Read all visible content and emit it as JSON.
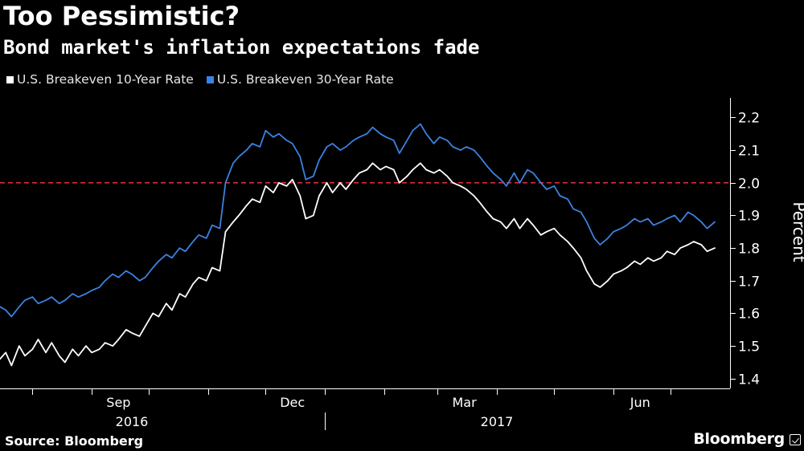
{
  "header": {
    "title": "Too Pessimistic?",
    "subtitle": "Bond market's inflation expectations fade"
  },
  "footer": {
    "source": "Source: Bloomberg",
    "brand": "Bloomberg"
  },
  "colors": {
    "background": "#000000",
    "series_10y": "#ffffff",
    "series_30y": "#3b82e0",
    "reference_line": "#e8313b",
    "axis": "#ffffff"
  },
  "chart_data": {
    "type": "line",
    "title": "Too Pessimistic?",
    "subtitle": "Bond market's inflation expectations fade",
    "ylabel": "Percent",
    "ylim": [
      1.37,
      2.26
    ],
    "yticks": [
      1.4,
      1.5,
      1.6,
      1.7,
      1.8,
      1.9,
      2.0,
      2.1,
      2.2
    ],
    "ytick_labels": [
      "1.4",
      "1.5",
      "1.6",
      "1.7",
      "1.8",
      "1.9",
      "2.0",
      "2.1",
      "2.2"
    ],
    "xlim": [
      "2016-07-15",
      "2017-08-01"
    ],
    "month_ticks": [
      "2016-08-01",
      "2016-09-01",
      "2016-10-01",
      "2016-11-01",
      "2016-12-01",
      "2017-01-01",
      "2017-02-01",
      "2017-03-01",
      "2017-04-01",
      "2017-05-01",
      "2017-06-01",
      "2017-07-01"
    ],
    "month_labels": [
      {
        "date": "2016-09-15",
        "label": "Sep"
      },
      {
        "date": "2016-12-15",
        "label": "Dec"
      },
      {
        "date": "2017-03-15",
        "label": "Mar"
      },
      {
        "date": "2017-06-15",
        "label": "Jun"
      }
    ],
    "year_labels": [
      {
        "date": "2016-09-22",
        "label": "2016"
      },
      {
        "date": "2017-04-01",
        "label": "2017"
      }
    ],
    "year_divider": "2017-01-01",
    "reference_line": {
      "y": 2.0,
      "style": "dashed"
    },
    "grid": false,
    "legend_position": "top-left",
    "series": [
      {
        "name": "U.S. Breakeven 10-Year Rate",
        "color": "#ffffff",
        "points": [
          [
            "2016-07-15",
            1.46
          ],
          [
            "2016-07-18",
            1.48
          ],
          [
            "2016-07-21",
            1.44
          ],
          [
            "2016-07-25",
            1.5
          ],
          [
            "2016-07-28",
            1.47
          ],
          [
            "2016-08-01",
            1.49
          ],
          [
            "2016-08-04",
            1.52
          ],
          [
            "2016-08-08",
            1.48
          ],
          [
            "2016-08-11",
            1.51
          ],
          [
            "2016-08-15",
            1.47
          ],
          [
            "2016-08-18",
            1.45
          ],
          [
            "2016-08-22",
            1.49
          ],
          [
            "2016-08-25",
            1.47
          ],
          [
            "2016-08-29",
            1.5
          ],
          [
            "2016-09-01",
            1.48
          ],
          [
            "2016-09-05",
            1.49
          ],
          [
            "2016-09-08",
            1.51
          ],
          [
            "2016-09-12",
            1.5
          ],
          [
            "2016-09-15",
            1.52
          ],
          [
            "2016-09-19",
            1.55
          ],
          [
            "2016-09-22",
            1.54
          ],
          [
            "2016-09-26",
            1.53
          ],
          [
            "2016-09-29",
            1.56
          ],
          [
            "2016-10-03",
            1.6
          ],
          [
            "2016-10-06",
            1.59
          ],
          [
            "2016-10-10",
            1.63
          ],
          [
            "2016-10-13",
            1.61
          ],
          [
            "2016-10-17",
            1.66
          ],
          [
            "2016-10-20",
            1.65
          ],
          [
            "2016-10-24",
            1.69
          ],
          [
            "2016-10-27",
            1.71
          ],
          [
            "2016-10-31",
            1.7
          ],
          [
            "2016-11-03",
            1.74
          ],
          [
            "2016-11-07",
            1.73
          ],
          [
            "2016-11-10",
            1.85
          ],
          [
            "2016-11-14",
            1.88
          ],
          [
            "2016-11-17",
            1.9
          ],
          [
            "2016-11-21",
            1.93
          ],
          [
            "2016-11-24",
            1.95
          ],
          [
            "2016-11-28",
            1.94
          ],
          [
            "2016-12-01",
            1.99
          ],
          [
            "2016-12-05",
            1.97
          ],
          [
            "2016-12-08",
            2.0
          ],
          [
            "2016-12-12",
            1.99
          ],
          [
            "2016-12-15",
            2.01
          ],
          [
            "2016-12-19",
            1.96
          ],
          [
            "2016-12-22",
            1.89
          ],
          [
            "2016-12-26",
            1.9
          ],
          [
            "2016-12-29",
            1.96
          ],
          [
            "2017-01-02",
            2.0
          ],
          [
            "2017-01-05",
            1.97
          ],
          [
            "2017-01-09",
            2.0
          ],
          [
            "2017-01-12",
            1.98
          ],
          [
            "2017-01-16",
            2.01
          ],
          [
            "2017-01-19",
            2.03
          ],
          [
            "2017-01-23",
            2.04
          ],
          [
            "2017-01-26",
            2.06
          ],
          [
            "2017-01-30",
            2.04
          ],
          [
            "2017-02-02",
            2.05
          ],
          [
            "2017-02-06",
            2.04
          ],
          [
            "2017-02-09",
            2.0
          ],
          [
            "2017-02-13",
            2.02
          ],
          [
            "2017-02-16",
            2.04
          ],
          [
            "2017-02-20",
            2.06
          ],
          [
            "2017-02-23",
            2.04
          ],
          [
            "2017-02-27",
            2.03
          ],
          [
            "2017-03-02",
            2.04
          ],
          [
            "2017-03-06",
            2.02
          ],
          [
            "2017-03-09",
            2.0
          ],
          [
            "2017-03-13",
            1.99
          ],
          [
            "2017-03-16",
            1.98
          ],
          [
            "2017-03-20",
            1.96
          ],
          [
            "2017-03-23",
            1.94
          ],
          [
            "2017-03-27",
            1.91
          ],
          [
            "2017-03-30",
            1.89
          ],
          [
            "2017-04-03",
            1.88
          ],
          [
            "2017-04-06",
            1.86
          ],
          [
            "2017-04-10",
            1.89
          ],
          [
            "2017-04-13",
            1.86
          ],
          [
            "2017-04-17",
            1.89
          ],
          [
            "2017-04-20",
            1.87
          ],
          [
            "2017-04-24",
            1.84
          ],
          [
            "2017-04-27",
            1.85
          ],
          [
            "2017-05-01",
            1.86
          ],
          [
            "2017-05-04",
            1.84
          ],
          [
            "2017-05-08",
            1.82
          ],
          [
            "2017-05-11",
            1.8
          ],
          [
            "2017-05-15",
            1.77
          ],
          [
            "2017-05-18",
            1.73
          ],
          [
            "2017-05-22",
            1.69
          ],
          [
            "2017-05-25",
            1.68
          ],
          [
            "2017-05-29",
            1.7
          ],
          [
            "2017-06-01",
            1.72
          ],
          [
            "2017-06-05",
            1.73
          ],
          [
            "2017-06-08",
            1.74
          ],
          [
            "2017-06-12",
            1.76
          ],
          [
            "2017-06-15",
            1.75
          ],
          [
            "2017-06-19",
            1.77
          ],
          [
            "2017-06-22",
            1.76
          ],
          [
            "2017-06-26",
            1.77
          ],
          [
            "2017-06-29",
            1.79
          ],
          [
            "2017-07-03",
            1.78
          ],
          [
            "2017-07-06",
            1.8
          ],
          [
            "2017-07-10",
            1.81
          ],
          [
            "2017-07-13",
            1.82
          ],
          [
            "2017-07-17",
            1.81
          ],
          [
            "2017-07-20",
            1.79
          ],
          [
            "2017-07-24",
            1.8
          ]
        ]
      },
      {
        "name": "U.S. Breakeven 30-Year Rate",
        "color": "#3b82e0",
        "points": [
          [
            "2016-07-15",
            1.62
          ],
          [
            "2016-07-18",
            1.61
          ],
          [
            "2016-07-21",
            1.59
          ],
          [
            "2016-07-25",
            1.62
          ],
          [
            "2016-07-28",
            1.64
          ],
          [
            "2016-08-01",
            1.65
          ],
          [
            "2016-08-04",
            1.63
          ],
          [
            "2016-08-08",
            1.64
          ],
          [
            "2016-08-11",
            1.65
          ],
          [
            "2016-08-15",
            1.63
          ],
          [
            "2016-08-18",
            1.64
          ],
          [
            "2016-08-22",
            1.66
          ],
          [
            "2016-08-25",
            1.65
          ],
          [
            "2016-08-29",
            1.66
          ],
          [
            "2016-09-01",
            1.67
          ],
          [
            "2016-09-05",
            1.68
          ],
          [
            "2016-09-08",
            1.7
          ],
          [
            "2016-09-12",
            1.72
          ],
          [
            "2016-09-15",
            1.71
          ],
          [
            "2016-09-19",
            1.73
          ],
          [
            "2016-09-22",
            1.72
          ],
          [
            "2016-09-26",
            1.7
          ],
          [
            "2016-09-29",
            1.71
          ],
          [
            "2016-10-03",
            1.74
          ],
          [
            "2016-10-06",
            1.76
          ],
          [
            "2016-10-10",
            1.78
          ],
          [
            "2016-10-13",
            1.77
          ],
          [
            "2016-10-17",
            1.8
          ],
          [
            "2016-10-20",
            1.79
          ],
          [
            "2016-10-24",
            1.82
          ],
          [
            "2016-10-27",
            1.84
          ],
          [
            "2016-10-31",
            1.83
          ],
          [
            "2016-11-03",
            1.87
          ],
          [
            "2016-11-07",
            1.86
          ],
          [
            "2016-11-10",
            2.0
          ],
          [
            "2016-11-14",
            2.06
          ],
          [
            "2016-11-17",
            2.08
          ],
          [
            "2016-11-21",
            2.1
          ],
          [
            "2016-11-24",
            2.12
          ],
          [
            "2016-11-28",
            2.11
          ],
          [
            "2016-12-01",
            2.16
          ],
          [
            "2016-12-05",
            2.14
          ],
          [
            "2016-12-08",
            2.15
          ],
          [
            "2016-12-12",
            2.13
          ],
          [
            "2016-12-15",
            2.12
          ],
          [
            "2016-12-19",
            2.08
          ],
          [
            "2016-12-22",
            2.01
          ],
          [
            "2016-12-26",
            2.02
          ],
          [
            "2016-12-29",
            2.07
          ],
          [
            "2017-01-02",
            2.11
          ],
          [
            "2017-01-05",
            2.12
          ],
          [
            "2017-01-09",
            2.1
          ],
          [
            "2017-01-12",
            2.11
          ],
          [
            "2017-01-16",
            2.13
          ],
          [
            "2017-01-19",
            2.14
          ],
          [
            "2017-01-23",
            2.15
          ],
          [
            "2017-01-26",
            2.17
          ],
          [
            "2017-01-30",
            2.15
          ],
          [
            "2017-02-02",
            2.14
          ],
          [
            "2017-02-06",
            2.13
          ],
          [
            "2017-02-09",
            2.09
          ],
          [
            "2017-02-13",
            2.13
          ],
          [
            "2017-02-16",
            2.16
          ],
          [
            "2017-02-20",
            2.18
          ],
          [
            "2017-02-23",
            2.15
          ],
          [
            "2017-02-27",
            2.12
          ],
          [
            "2017-03-02",
            2.14
          ],
          [
            "2017-03-06",
            2.13
          ],
          [
            "2017-03-09",
            2.11
          ],
          [
            "2017-03-13",
            2.1
          ],
          [
            "2017-03-16",
            2.11
          ],
          [
            "2017-03-20",
            2.1
          ],
          [
            "2017-03-23",
            2.08
          ],
          [
            "2017-03-27",
            2.05
          ],
          [
            "2017-03-30",
            2.03
          ],
          [
            "2017-04-03",
            2.01
          ],
          [
            "2017-04-06",
            1.99
          ],
          [
            "2017-04-10",
            2.03
          ],
          [
            "2017-04-13",
            2.0
          ],
          [
            "2017-04-17",
            2.04
          ],
          [
            "2017-04-20",
            2.03
          ],
          [
            "2017-04-24",
            2.0
          ],
          [
            "2017-04-27",
            1.98
          ],
          [
            "2017-05-01",
            1.99
          ],
          [
            "2017-05-04",
            1.96
          ],
          [
            "2017-05-08",
            1.95
          ],
          [
            "2017-05-11",
            1.92
          ],
          [
            "2017-05-15",
            1.91
          ],
          [
            "2017-05-18",
            1.88
          ],
          [
            "2017-05-22",
            1.83
          ],
          [
            "2017-05-25",
            1.81
          ],
          [
            "2017-05-29",
            1.83
          ],
          [
            "2017-06-01",
            1.85
          ],
          [
            "2017-06-05",
            1.86
          ],
          [
            "2017-06-08",
            1.87
          ],
          [
            "2017-06-12",
            1.89
          ],
          [
            "2017-06-15",
            1.88
          ],
          [
            "2017-06-19",
            1.89
          ],
          [
            "2017-06-22",
            1.87
          ],
          [
            "2017-06-26",
            1.88
          ],
          [
            "2017-06-29",
            1.89
          ],
          [
            "2017-07-03",
            1.9
          ],
          [
            "2017-07-06",
            1.88
          ],
          [
            "2017-07-10",
            1.91
          ],
          [
            "2017-07-13",
            1.9
          ],
          [
            "2017-07-17",
            1.88
          ],
          [
            "2017-07-20",
            1.86
          ],
          [
            "2017-07-24",
            1.88
          ]
        ]
      }
    ]
  }
}
